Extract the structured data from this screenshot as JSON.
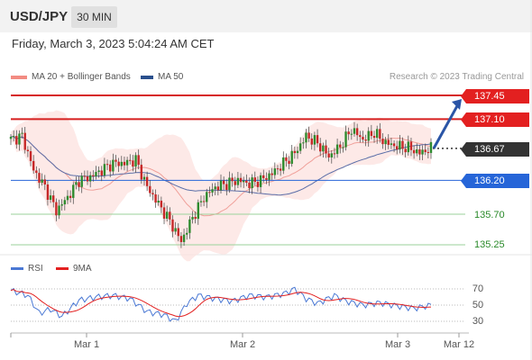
{
  "header": {
    "symbol": "USD/JPY",
    "timeframe": "30 MIN"
  },
  "timestamp": "Friday, March 3, 2023 5:04:24 AM CET",
  "legend": {
    "bollinger": {
      "label": "MA 20 + Bollinger Bands",
      "color": "#f28b82"
    },
    "ma50": {
      "label": "MA 50",
      "color": "#2a4f8c"
    }
  },
  "credit": "Research © 2023 Trading Central",
  "levels": [
    {
      "value": 137.45,
      "label": "137.45",
      "style": "red"
    },
    {
      "value": 137.1,
      "label": "137.10",
      "style": "red"
    },
    {
      "value": 136.67,
      "label": "136.67",
      "style": "dark"
    },
    {
      "value": 136.2,
      "label": "136.20",
      "style": "blue"
    },
    {
      "value": 135.7,
      "label": "135.70",
      "style": "green"
    },
    {
      "value": 135.25,
      "label": "135.25",
      "style": "green"
    }
  ],
  "rsi_legend": {
    "rsi": {
      "label": "RSI",
      "color": "#4a78d4"
    },
    "ma9": {
      "label": "9MA",
      "color": "#e32020"
    }
  },
  "rsi_levels": [
    "70",
    "50",
    "30"
  ],
  "x_labels": [
    "Mar 1",
    "Mar 2",
    "Mar 3",
    "Mar 12"
  ],
  "chart_data": {
    "type": "candlestick",
    "ylim": [
      135.2,
      137.6
    ],
    "price_anchors": [
      [
        0,
        136.8
      ],
      [
        4,
        136.85
      ],
      [
        8,
        136.35
      ],
      [
        12,
        136.1
      ],
      [
        16,
        135.75
      ],
      [
        20,
        135.95
      ],
      [
        24,
        136.2
      ],
      [
        28,
        136.25
      ],
      [
        32,
        136.35
      ],
      [
        36,
        136.45
      ],
      [
        40,
        136.45
      ],
      [
        44,
        136.5
      ],
      [
        48,
        136.1
      ],
      [
        52,
        135.85
      ],
      [
        56,
        135.6
      ],
      [
        60,
        135.3
      ],
      [
        64,
        135.65
      ],
      [
        68,
        135.95
      ],
      [
        72,
        136.1
      ],
      [
        76,
        136.15
      ],
      [
        80,
        136.2
      ],
      [
        84,
        136.15
      ],
      [
        88,
        136.2
      ],
      [
        92,
        136.3
      ],
      [
        96,
        136.45
      ],
      [
        100,
        136.6
      ],
      [
        104,
        136.85
      ],
      [
        108,
        136.75
      ],
      [
        112,
        136.55
      ],
      [
        116,
        136.7
      ],
      [
        120,
        136.95
      ],
      [
        124,
        136.8
      ],
      [
        128,
        136.9
      ],
      [
        132,
        136.75
      ],
      [
        136,
        136.7
      ],
      [
        140,
        136.68
      ],
      [
        144,
        136.6
      ],
      [
        148,
        136.67
      ]
    ],
    "rsi_anchors": [
      [
        0,
        68
      ],
      [
        6,
        62
      ],
      [
        10,
        40
      ],
      [
        14,
        45
      ],
      [
        18,
        36
      ],
      [
        24,
        56
      ],
      [
        30,
        60
      ],
      [
        36,
        62
      ],
      [
        42,
        58
      ],
      [
        48,
        42
      ],
      [
        54,
        38
      ],
      [
        58,
        30
      ],
      [
        62,
        52
      ],
      [
        66,
        62
      ],
      [
        72,
        58
      ],
      [
        78,
        55
      ],
      [
        84,
        62
      ],
      [
        90,
        60
      ],
      [
        96,
        64
      ],
      [
        100,
        70
      ],
      [
        104,
        58
      ],
      [
        108,
        52
      ],
      [
        114,
        62
      ],
      [
        118,
        55
      ],
      [
        124,
        50
      ],
      [
        130,
        53
      ],
      [
        136,
        49
      ],
      [
        142,
        46
      ],
      [
        148,
        50
      ]
    ],
    "projection": {
      "from": 136.67,
      "to": 137.45
    }
  }
}
